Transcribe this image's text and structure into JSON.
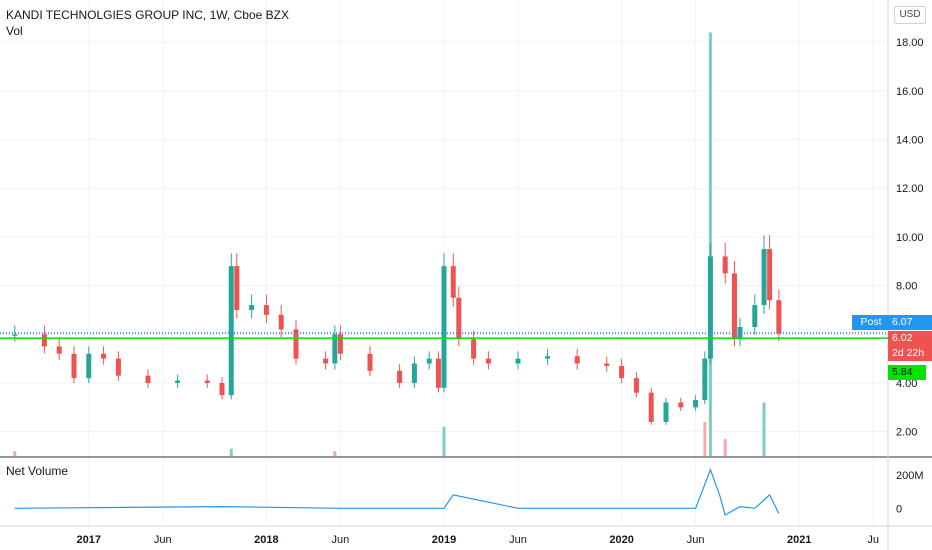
{
  "header": {
    "title": "KANDI TECHNOLGIES GROUP INC, 1W, Cboe BZX",
    "vol_label": "Vol",
    "currency": "USD"
  },
  "lower_pane": {
    "title": "Net Volume"
  },
  "price_tags": {
    "post_label": "Post",
    "post_value": "6.07",
    "close_value": "6.02",
    "countdown": "2d 22h",
    "line_value": "5.84"
  },
  "colors": {
    "up": "#26a69a",
    "down": "#ef5350",
    "support_line": "#00e400",
    "net_volume": "#2196f3",
    "grid": "#f0f3fa"
  },
  "chart_data": [
    {
      "type": "candlestick",
      "title": "KANDI TECHNOLGIES GROUP INC, 1W, Cboe BZX",
      "y_axis_labels": [
        "2.00",
        "4.00",
        "6.00",
        "8.00",
        "10.00",
        "12.00",
        "14.00",
        "16.00",
        "18.00"
      ],
      "ylim": [
        1.0,
        18.5
      ],
      "x_axis_labels": [
        "2017",
        "Jun",
        "2018",
        "Jun",
        "2019",
        "Jun",
        "2020",
        "Jun",
        "2021",
        "Ju"
      ],
      "xlim": [
        "2016-07",
        "2021-07"
      ],
      "horizontal_line": 5.84,
      "series": [
        {
          "name": "price",
          "x": [
            "2016-08",
            "2016-10",
            "2016-11",
            "2016-12",
            "2017-01",
            "2017-02",
            "2017-03",
            "2017-05",
            "2017-07",
            "2017-09",
            "2017-10",
            "2017-10-20",
            "2017-11",
            "2017-12",
            "2018-01",
            "2018-02",
            "2018-03",
            "2018-05",
            "2018-05-20",
            "2018-06",
            "2018-08",
            "2018-10",
            "2018-11",
            "2018-12",
            "2018-12-20",
            "2019-01",
            "2019-01-20",
            "2019-02",
            "2019-03",
            "2019-04",
            "2019-06",
            "2019-08",
            "2019-10",
            "2019-12",
            "2020-01",
            "2020-02",
            "2020-03",
            "2020-04",
            "2020-05",
            "2020-06",
            "2020-06-20",
            "2020-07",
            "2020-08",
            "2020-08-20",
            "2020-09",
            "2020-10",
            "2020-10-20",
            "2020-11",
            "2020-11-20"
          ],
          "values": [
            6.0,
            5.5,
            5.2,
            4.2,
            5.2,
            5.0,
            4.3,
            4.0,
            4.1,
            4.0,
            3.5,
            8.8,
            7.0,
            7.2,
            6.8,
            6.2,
            5.0,
            4.8,
            6.0,
            5.2,
            4.5,
            4.0,
            4.8,
            5.0,
            3.8,
            8.8,
            7.5,
            5.8,
            5.0,
            4.8,
            5.0,
            5.1,
            4.8,
            4.7,
            4.2,
            3.6,
            2.4,
            3.2,
            3.0,
            3.3,
            5.0,
            9.2,
            8.5,
            5.8,
            6.3,
            7.2,
            9.5,
            7.4,
            6.02
          ]
        }
      ]
    },
    {
      "type": "bar",
      "title": "Vol",
      "x": [
        "2016-08",
        "2017-10-20",
        "2018-05-20",
        "2019-01",
        "2020-06-20",
        "2020-07",
        "2020-08",
        "2020-10-20"
      ],
      "values": [
        0.2,
        0.3,
        0.2,
        1.2,
        1.4,
        17.4,
        0.7,
        2.2
      ],
      "ylim": [
        0,
        18.5
      ]
    },
    {
      "type": "line",
      "title": "Net Volume",
      "y_axis_labels": [
        "0",
        "200M"
      ],
      "ylim": [
        -100,
        300
      ],
      "x": [
        "2016-08",
        "2017-10",
        "2018-06",
        "2019-01",
        "2019-01-20",
        "2019-06",
        "2020-06",
        "2020-07",
        "2020-07-20",
        "2020-08",
        "2020-09",
        "2020-10",
        "2020-11",
        "2020-11-20"
      ],
      "series": [
        {
          "name": "Net Volume",
          "values": [
            0,
            10,
            0,
            0,
            80,
            0,
            0,
            230,
            80,
            -40,
            10,
            0,
            80,
            -30
          ]
        }
      ]
    }
  ]
}
